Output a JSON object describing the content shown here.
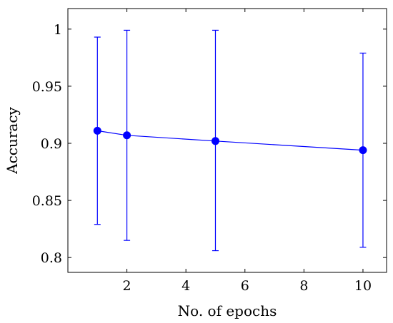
{
  "chart_data": {
    "type": "line",
    "title": "",
    "xlabel": "No. of epochs",
    "ylabel": "Accuracy",
    "xlim": [
      0,
      10.8
    ],
    "ylim": [
      0.787,
      1.018
    ],
    "xticks": [
      2,
      4,
      6,
      8,
      10
    ],
    "xtick_labels": [
      "2",
      "4",
      "6",
      "8",
      "10"
    ],
    "yticks": [
      0.8,
      0.85,
      0.9,
      0.95,
      1
    ],
    "ytick_labels": [
      "0.8",
      "0.85",
      "0.9",
      "0.95",
      "1"
    ],
    "grid": false,
    "legend": "none",
    "series": [
      {
        "color": "#0000ff",
        "x": [
          1,
          2,
          5,
          10
        ],
        "y": [
          0.911,
          0.907,
          0.902,
          0.894
        ],
        "err_low": [
          0.829,
          0.815,
          0.806,
          0.809
        ],
        "err_high": [
          0.993,
          0.999,
          0.999,
          0.979
        ]
      }
    ]
  }
}
